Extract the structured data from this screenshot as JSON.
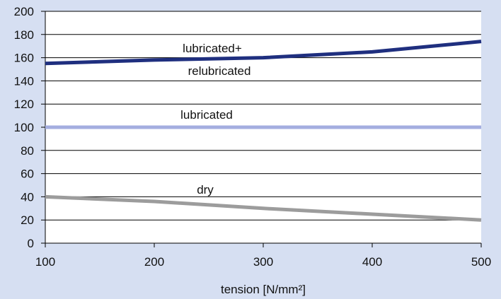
{
  "chart_data": {
    "type": "line",
    "xlabel": "tension [N/mm²]",
    "ylabel": "",
    "title": "",
    "x": [
      100,
      200,
      300,
      400,
      500
    ],
    "xlim": [
      100,
      500
    ],
    "ylim": [
      0,
      200
    ],
    "x_ticks": [
      "100",
      "200",
      "300",
      "400",
      "500"
    ],
    "y_ticks": [
      "0",
      "20",
      "40",
      "60",
      "80",
      "100",
      "120",
      "140",
      "160",
      "180",
      "200"
    ],
    "grid": "horizontal",
    "series": [
      {
        "label_lines": [
          "lubricated+",
          "relubricated"
        ],
        "values": [
          155,
          158,
          160,
          165,
          174
        ],
        "color": "#1f2f7f"
      },
      {
        "label_lines": [
          "lubricated"
        ],
        "values": [
          100,
          100,
          100,
          100,
          100
        ],
        "color": "#a4aee0"
      },
      {
        "label_lines": [
          "dry"
        ],
        "values": [
          40,
          36,
          30,
          25,
          20
        ],
        "color": "#9c9c9c"
      }
    ]
  }
}
